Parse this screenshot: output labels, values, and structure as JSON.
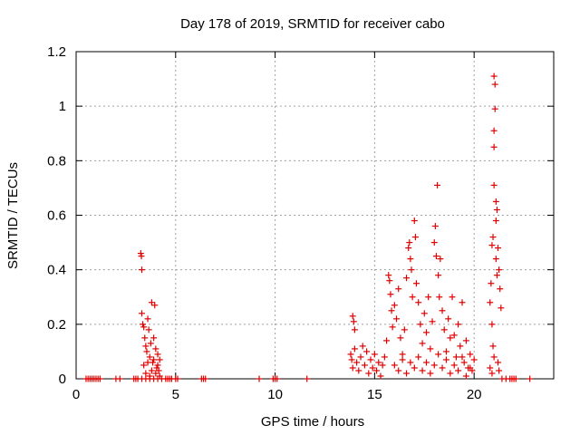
{
  "chart_data": {
    "type": "scatter",
    "title": "Day 178 of 2019, SRMTID for receiver cabo",
    "xlabel": "GPS time / hours",
    "ylabel": "SRMTID / TECUs",
    "xlim": [
      0,
      24
    ],
    "ylim": [
      0,
      1.2
    ],
    "x_ticks": [
      0,
      5,
      10,
      15,
      20
    ],
    "x_tick_labels": [
      "0",
      "5",
      "10",
      "15",
      "20"
    ],
    "y_ticks": [
      0,
      0.2,
      0.4,
      0.6,
      0.8,
      1.0,
      1.2
    ],
    "y_tick_labels": [
      "0",
      "0.2",
      "0.4",
      "0.6",
      "0.8",
      "1",
      "1.2"
    ],
    "grid": true,
    "marker": "plus",
    "marker_color": "#e00000",
    "series": [
      {
        "name": "SRMTID",
        "points": [
          [
            0.5,
            0
          ],
          [
            0.6,
            0
          ],
          [
            0.7,
            0
          ],
          [
            0.8,
            0
          ],
          [
            0.9,
            0
          ],
          [
            1.0,
            0
          ],
          [
            1.1,
            0
          ],
          [
            1.2,
            0
          ],
          [
            2.0,
            0
          ],
          [
            2.2,
            0
          ],
          [
            2.9,
            0
          ],
          [
            3.0,
            0
          ],
          [
            3.1,
            0
          ],
          [
            3.25,
            0.46
          ],
          [
            3.28,
            0.45
          ],
          [
            3.3,
            0.4
          ],
          [
            3.3,
            0.24
          ],
          [
            3.35,
            0.2
          ],
          [
            3.4,
            0.19
          ],
          [
            3.45,
            0.15
          ],
          [
            3.5,
            0.12
          ],
          [
            3.55,
            0.1
          ],
          [
            3.6,
            0.22
          ],
          [
            3.65,
            0.18
          ],
          [
            3.7,
            0.08
          ],
          [
            3.75,
            0.13
          ],
          [
            3.8,
            0.28
          ],
          [
            3.85,
            0.06
          ],
          [
            3.9,
            0.15
          ],
          [
            3.95,
            0.27
          ],
          [
            4.0,
            0.11
          ],
          [
            4.05,
            0.04
          ],
          [
            4.1,
            0.09
          ],
          [
            4.15,
            0.03
          ],
          [
            4.2,
            0.07
          ],
          [
            3.4,
            0.05
          ],
          [
            3.5,
            0.02
          ],
          [
            3.6,
            0.06
          ],
          [
            3.7,
            0.01
          ],
          [
            3.8,
            0.03
          ],
          [
            3.9,
            0.07
          ],
          [
            4.0,
            0.02
          ],
          [
            4.1,
            0.05
          ],
          [
            4.2,
            0.01
          ],
          [
            3.3,
            0.0
          ],
          [
            3.5,
            0.0
          ],
          [
            3.7,
            0.0
          ],
          [
            3.9,
            0.0
          ],
          [
            4.1,
            0.0
          ],
          [
            4.3,
            0.0
          ],
          [
            4.5,
            0
          ],
          [
            4.6,
            0
          ],
          [
            4.7,
            0
          ],
          [
            4.8,
            0
          ],
          [
            5.0,
            0
          ],
          [
            5.1,
            0
          ],
          [
            6.3,
            0
          ],
          [
            6.4,
            0
          ],
          [
            6.5,
            0
          ],
          [
            9.2,
            0
          ],
          [
            9.9,
            0
          ],
          [
            10.0,
            0
          ],
          [
            10.1,
            0
          ],
          [
            11.6,
            0
          ],
          [
            13.9,
            0.23
          ],
          [
            13.95,
            0.21
          ],
          [
            14.0,
            0.18
          ],
          [
            13.8,
            0.09
          ],
          [
            13.85,
            0.07
          ],
          [
            13.9,
            0.04
          ],
          [
            14.0,
            0.11
          ],
          [
            14.1,
            0.06
          ],
          [
            14.2,
            0.03
          ],
          [
            14.3,
            0.08
          ],
          [
            14.4,
            0.12
          ],
          [
            14.5,
            0.05
          ],
          [
            14.6,
            0.1
          ],
          [
            14.7,
            0.02
          ],
          [
            14.8,
            0.07
          ],
          [
            14.9,
            0.04
          ],
          [
            15.0,
            0.09
          ],
          [
            15.1,
            0.03
          ],
          [
            15.2,
            0.06
          ],
          [
            15.3,
            0.01
          ],
          [
            15.4,
            0.05
          ],
          [
            15.5,
            0.08
          ],
          [
            15.6,
            0.14
          ],
          [
            15.7,
            0.38
          ],
          [
            15.75,
            0.36
          ],
          [
            15.8,
            0.31
          ],
          [
            15.85,
            0.25
          ],
          [
            15.9,
            0.19
          ],
          [
            16.0,
            0.27
          ],
          [
            16.1,
            0.22
          ],
          [
            16.2,
            0.33
          ],
          [
            16.3,
            0.15
          ],
          [
            16.4,
            0.09
          ],
          [
            16.5,
            0.18
          ],
          [
            16.6,
            0.37
          ],
          [
            16.7,
            0.48
          ],
          [
            16.75,
            0.5
          ],
          [
            16.8,
            0.44
          ],
          [
            16.85,
            0.4
          ],
          [
            16.9,
            0.3
          ],
          [
            17.0,
            0.58
          ],
          [
            17.05,
            0.52
          ],
          [
            17.1,
            0.35
          ],
          [
            17.2,
            0.28
          ],
          [
            17.3,
            0.2
          ],
          [
            17.4,
            0.13
          ],
          [
            17.5,
            0.24
          ],
          [
            17.6,
            0.17
          ],
          [
            17.7,
            0.3
          ],
          [
            17.8,
            0.11
          ],
          [
            17.9,
            0.21
          ],
          [
            18.0,
            0.5
          ],
          [
            18.05,
            0.56
          ],
          [
            18.1,
            0.45
          ],
          [
            18.15,
            0.71
          ],
          [
            18.2,
            0.38
          ],
          [
            18.25,
            0.3
          ],
          [
            18.3,
            0.44
          ],
          [
            18.4,
            0.25
          ],
          [
            18.5,
            0.18
          ],
          [
            18.6,
            0.1
          ],
          [
            18.7,
            0.22
          ],
          [
            18.8,
            0.15
          ],
          [
            18.9,
            0.3
          ],
          [
            19.0,
            0.16
          ],
          [
            19.1,
            0.08
          ],
          [
            19.2,
            0.2
          ],
          [
            19.3,
            0.12
          ],
          [
            19.4,
            0.28
          ],
          [
            19.5,
            0.06
          ],
          [
            19.6,
            0.14
          ],
          [
            19.7,
            0.04
          ],
          [
            19.8,
            0.09
          ],
          [
            19.9,
            0.03
          ],
          [
            20.0,
            0.07
          ],
          [
            16.0,
            0.05
          ],
          [
            16.2,
            0.03
          ],
          [
            16.4,
            0.07
          ],
          [
            16.6,
            0.02
          ],
          [
            16.8,
            0.06
          ],
          [
            17.0,
            0.04
          ],
          [
            17.2,
            0.08
          ],
          [
            17.4,
            0.03
          ],
          [
            17.6,
            0.06
          ],
          [
            17.8,
            0.02
          ],
          [
            18.0,
            0.05
          ],
          [
            18.2,
            0.09
          ],
          [
            18.4,
            0.04
          ],
          [
            18.6,
            0.07
          ],
          [
            18.8,
            0.02
          ],
          [
            19.0,
            0.05
          ],
          [
            19.2,
            0.03
          ],
          [
            19.4,
            0.08
          ],
          [
            19.6,
            0.01
          ],
          [
            19.8,
            0.04
          ],
          [
            20.8,
            0.28
          ],
          [
            20.85,
            0.35
          ],
          [
            20.9,
            0.49
          ],
          [
            20.95,
            0.52
          ],
          [
            21.0,
            0.71
          ],
          [
            21.0,
            1.11
          ],
          [
            21.05,
            1.08
          ],
          [
            21.0,
            0.91
          ],
          [
            21.05,
            0.99
          ],
          [
            21.0,
            0.85
          ],
          [
            21.1,
            0.65
          ],
          [
            21.15,
            0.62
          ],
          [
            21.1,
            0.58
          ],
          [
            21.2,
            0.48
          ],
          [
            21.25,
            0.4
          ],
          [
            21.3,
            0.33
          ],
          [
            21.35,
            0.26
          ],
          [
            21.1,
            0.44
          ],
          [
            21.15,
            0.38
          ],
          [
            20.9,
            0.2
          ],
          [
            20.95,
            0.12
          ],
          [
            21.0,
            0.08
          ],
          [
            21.2,
            0.06
          ],
          [
            21.25,
            0.03
          ],
          [
            20.8,
            0.04
          ],
          [
            20.9,
            0.02
          ],
          [
            21.4,
            0
          ],
          [
            21.6,
            0
          ],
          [
            21.8,
            0
          ],
          [
            21.9,
            0
          ],
          [
            22.0,
            0
          ],
          [
            22.1,
            0
          ],
          [
            22.8,
            0
          ]
        ]
      }
    ]
  }
}
